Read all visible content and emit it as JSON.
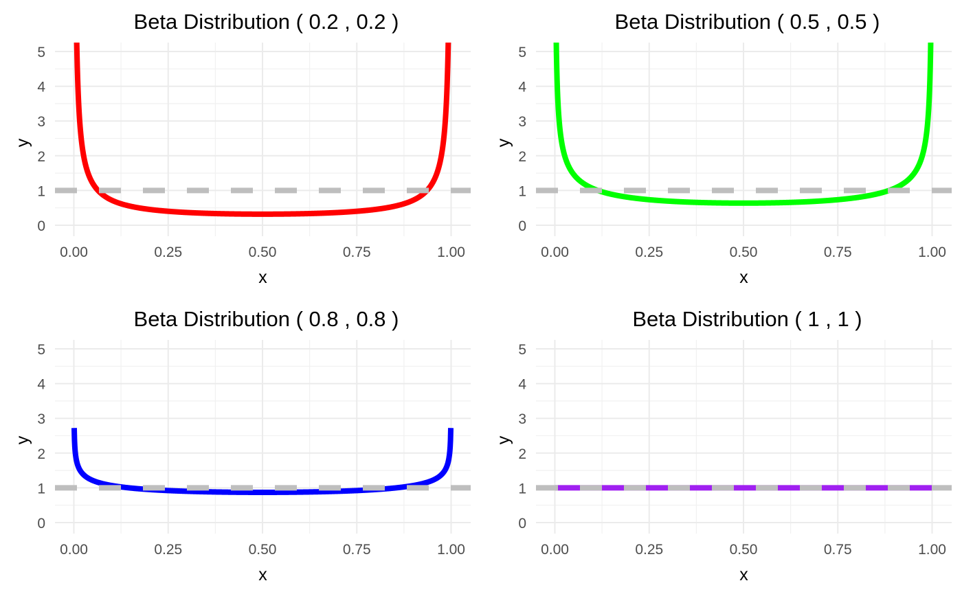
{
  "chart_data": [
    {
      "type": "line",
      "title": "Beta Distribution ( 0.2 , 0.2 )",
      "xlabel": "x",
      "ylabel": "y",
      "alpha": 0.2,
      "beta": 0.2,
      "xlim": [
        0,
        1
      ],
      "ylim": [
        0,
        5
      ],
      "xticks": [
        "0.00",
        "0.25",
        "0.50",
        "0.75",
        "1.00"
      ],
      "yticks": [
        "0",
        "1",
        "2",
        "3",
        "4",
        "5"
      ],
      "grid": true,
      "line_color": "#ff0000",
      "line_style": "solid",
      "reference_line": {
        "y": 1,
        "color": "#bebebe",
        "style": "dashed"
      }
    },
    {
      "type": "line",
      "title": "Beta Distribution ( 0.5 , 0.5 )",
      "xlabel": "x",
      "ylabel": "y",
      "alpha": 0.5,
      "beta": 0.5,
      "xlim": [
        0,
        1
      ],
      "ylim": [
        0,
        5
      ],
      "xticks": [
        "0.00",
        "0.25",
        "0.50",
        "0.75",
        "1.00"
      ],
      "yticks": [
        "0",
        "1",
        "2",
        "3",
        "4",
        "5"
      ],
      "grid": true,
      "line_color": "#00ff00",
      "line_style": "solid",
      "reference_line": {
        "y": 1,
        "color": "#bebebe",
        "style": "dashed"
      }
    },
    {
      "type": "line",
      "title": "Beta Distribution ( 0.8 , 0.8 )",
      "xlabel": "x",
      "ylabel": "y",
      "alpha": 0.8,
      "beta": 0.8,
      "xlim": [
        0,
        1
      ],
      "ylim": [
        0,
        5
      ],
      "xticks": [
        "0.00",
        "0.25",
        "0.50",
        "0.75",
        "1.00"
      ],
      "yticks": [
        "0",
        "1",
        "2",
        "3",
        "4",
        "5"
      ],
      "grid": true,
      "line_color": "#0000ff",
      "line_style": "solid",
      "reference_line": {
        "y": 1,
        "color": "#bebebe",
        "style": "dashed"
      }
    },
    {
      "type": "line",
      "title": "Beta Distribution ( 1 , 1 )",
      "xlabel": "x",
      "ylabel": "y",
      "alpha": 1,
      "beta": 1,
      "xlim": [
        0,
        1
      ],
      "ylim": [
        0,
        5
      ],
      "xticks": [
        "0.00",
        "0.25",
        "0.50",
        "0.75",
        "1.00"
      ],
      "yticks": [
        "0",
        "1",
        "2",
        "3",
        "4",
        "5"
      ],
      "grid": true,
      "line_color": "#a020f0",
      "line_style": "solid",
      "reference_line": {
        "y": 1,
        "color": "#bebebe",
        "style": "dashed"
      }
    }
  ]
}
